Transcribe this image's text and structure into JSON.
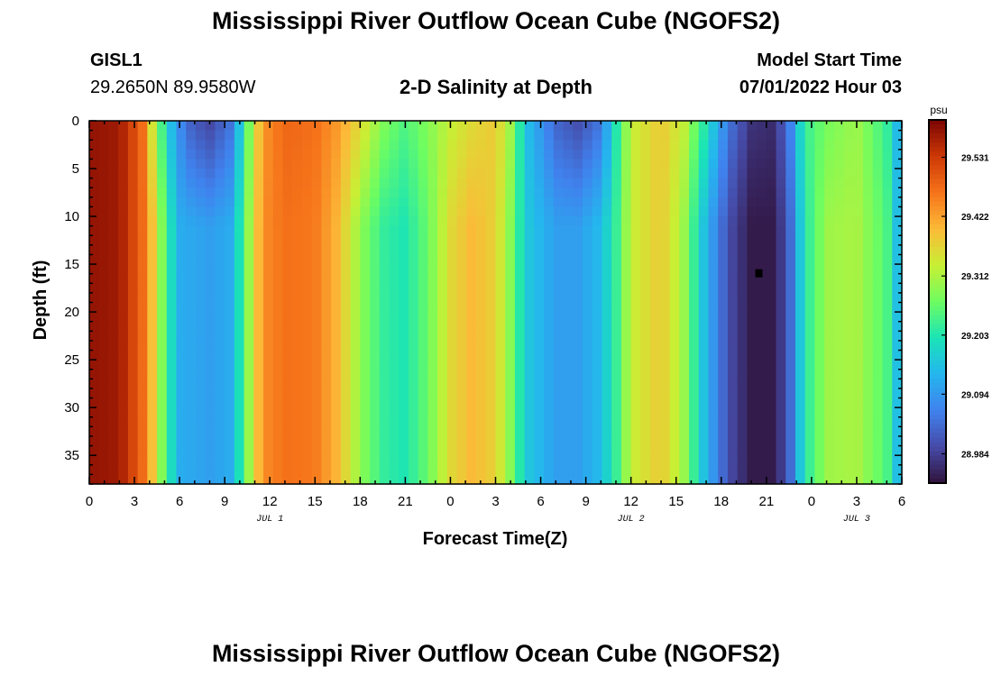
{
  "page": {
    "title": "Mississippi River Outflow Ocean Cube (NGOFS2)",
    "title_repeat": "Mississippi River Outflow Ocean Cube (NGOFS2)",
    "station": "GISL1",
    "location": "29.2650N  89.9580W",
    "subtitle": "2-D Salinity at Depth",
    "start_label": "Model Start Time",
    "start_value": "07/01/2022 Hour 03"
  },
  "chart_data": {
    "type": "heatmap",
    "title": "2-D Salinity at Depth",
    "xlabel": "Forecast Time(Z)",
    "ylabel": "Depth (ft)",
    "x_tick_labels": [
      "0",
      "3",
      "6",
      "9",
      "12",
      "15",
      "18",
      "21",
      "0",
      "3",
      "6",
      "9",
      "12",
      "15",
      "18",
      "21",
      "0",
      "3",
      "6"
    ],
    "date_labels": [
      "JUL 1",
      "JUL 2",
      "JUL 3"
    ],
    "y_tick_labels": [
      "0",
      "5",
      "10",
      "15",
      "20",
      "25",
      "30",
      "35"
    ],
    "ylim": [
      0,
      38
    ],
    "xlim_hours": [
      0,
      54
    ],
    "colorbar": {
      "unit": "psu",
      "ticks": [
        "29.531",
        "29.422",
        "29.312",
        "29.203",
        "29.094",
        "28.984"
      ],
      "range": [
        28.93,
        29.6
      ]
    },
    "marker_point": {
      "hour": 44.5,
      "depth_ft": 16
    },
    "surface_profile_psu": [
      [
        0,
        29.58
      ],
      [
        2,
        29.57
      ],
      [
        3.5,
        29.48
      ],
      [
        4.5,
        29.28
      ],
      [
        5.5,
        29.13
      ],
      [
        6.5,
        29.03
      ],
      [
        8,
        28.99
      ],
      [
        9.5,
        29.05
      ],
      [
        10.5,
        29.25
      ],
      [
        11.5,
        29.43
      ],
      [
        13,
        29.48
      ],
      [
        15,
        29.47
      ],
      [
        16.5,
        29.43
      ],
      [
        18,
        29.36
      ],
      [
        19.5,
        29.28
      ],
      [
        21,
        29.24
      ],
      [
        22.5,
        29.28
      ],
      [
        24,
        29.33
      ],
      [
        25.5,
        29.36
      ],
      [
        27,
        29.38
      ],
      [
        28,
        29.3
      ],
      [
        29,
        29.15
      ],
      [
        31,
        29.03
      ],
      [
        32.5,
        29.0
      ],
      [
        34,
        29.05
      ],
      [
        35,
        29.2
      ],
      [
        36,
        29.33
      ],
      [
        38,
        29.38
      ],
      [
        39.5,
        29.33
      ],
      [
        41,
        29.2
      ],
      [
        42.5,
        29.05
      ],
      [
        44,
        28.97
      ],
      [
        45.5,
        28.96
      ],
      [
        46.5,
        29.05
      ],
      [
        47.5,
        29.22
      ],
      [
        49,
        29.27
      ],
      [
        51,
        29.3
      ],
      [
        53,
        29.22
      ],
      [
        54,
        29.1
      ]
    ],
    "deep_profile_psu": [
      [
        0,
        29.58
      ],
      [
        2,
        29.57
      ],
      [
        3.5,
        29.48
      ],
      [
        4.5,
        29.35
      ],
      [
        5,
        29.24
      ],
      [
        6,
        29.12
      ],
      [
        8,
        29.1
      ],
      [
        9.5,
        29.12
      ],
      [
        10.5,
        29.28
      ],
      [
        11.5,
        29.44
      ],
      [
        13,
        29.47
      ],
      [
        15,
        29.46
      ],
      [
        16.5,
        29.4
      ],
      [
        18,
        29.29
      ],
      [
        19.5,
        29.22
      ],
      [
        21,
        29.2
      ],
      [
        22.5,
        29.26
      ],
      [
        24,
        29.36
      ],
      [
        25.5,
        29.4
      ],
      [
        27,
        29.37
      ],
      [
        28,
        29.28
      ],
      [
        29,
        29.16
      ],
      [
        31,
        29.1
      ],
      [
        32.5,
        29.1
      ],
      [
        34,
        29.14
      ],
      [
        35,
        29.22
      ],
      [
        36,
        29.33
      ],
      [
        38,
        29.38
      ],
      [
        39.5,
        29.3
      ],
      [
        41,
        29.13
      ],
      [
        42.5,
        29.0
      ],
      [
        44,
        28.94
      ],
      [
        45.5,
        28.94
      ],
      [
        46.5,
        29.02
      ],
      [
        47.5,
        29.2
      ],
      [
        49,
        29.3
      ],
      [
        51,
        29.31
      ],
      [
        53,
        29.24
      ],
      [
        54,
        29.1
      ]
    ]
  }
}
